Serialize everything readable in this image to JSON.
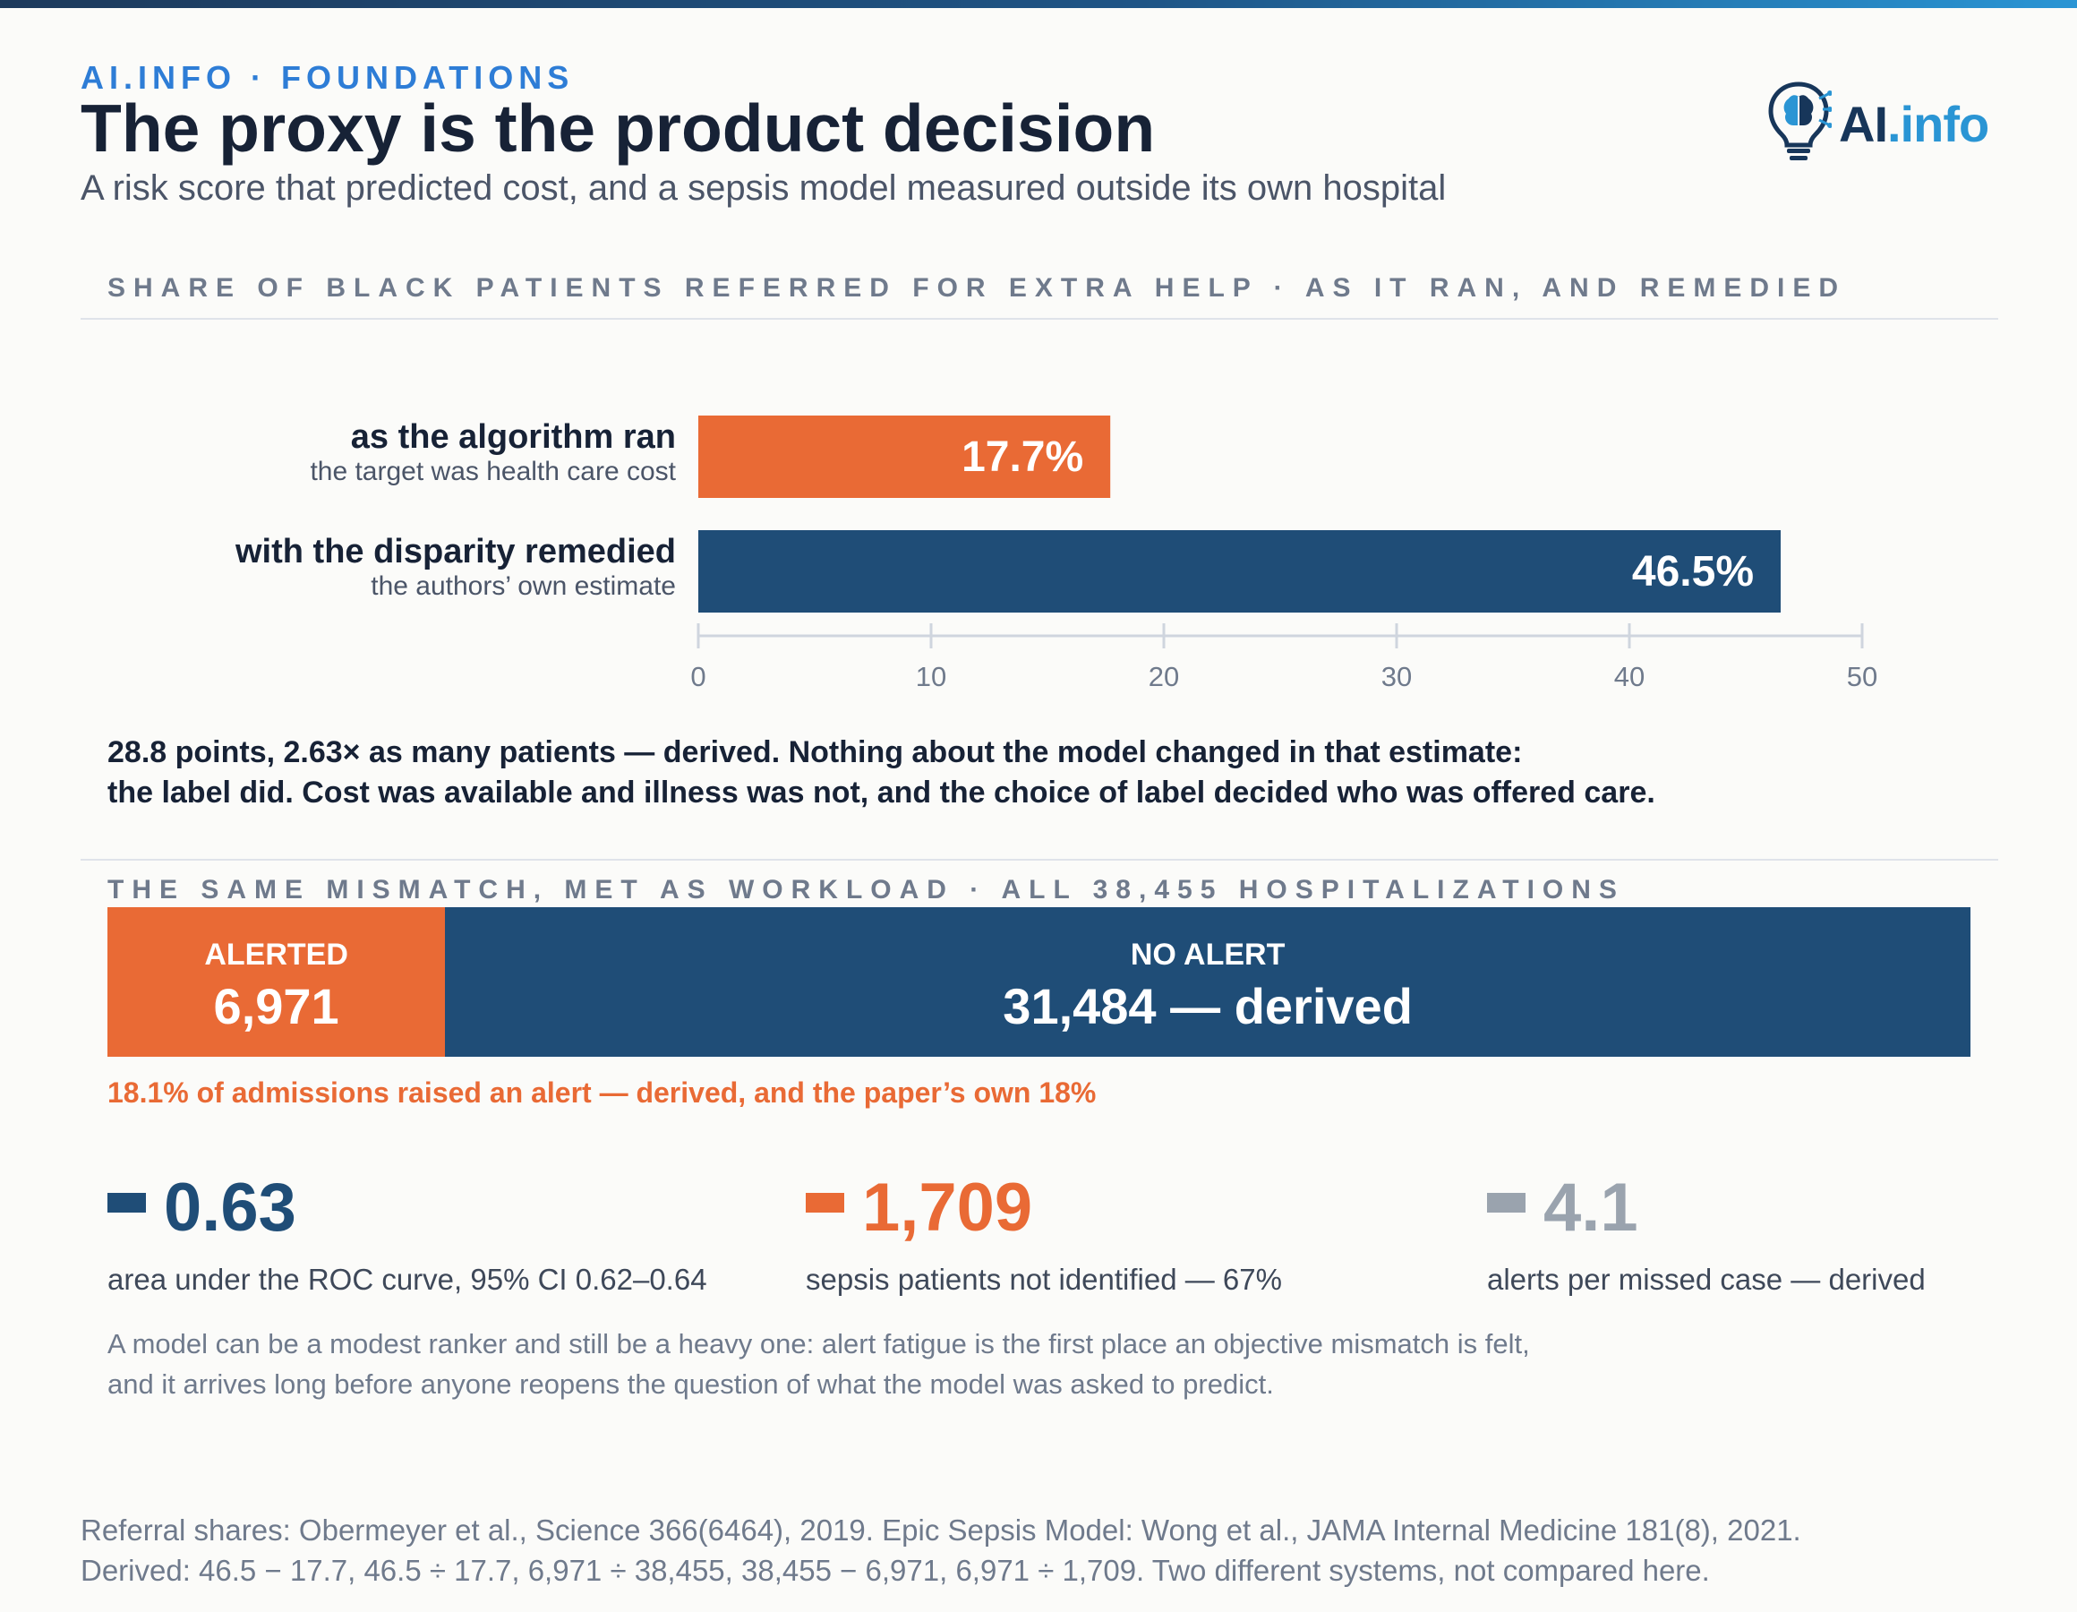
{
  "header": {
    "eyebrow": "AI.INFO · FOUNDATIONS",
    "title": "The proxy is the product decision",
    "subtitle": "A risk score that predicted cost, and a sepsis model measured outside its own hospital",
    "logo": {
      "ai": "AI",
      "info": ".info",
      "icon": "lightbulb-brain-icon"
    }
  },
  "section1": {
    "label": "SHARE OF BLACK PATIENTS REFERRED FOR EXTRA HELP · AS IT RAN, AND REMEDIED"
  },
  "chart_data": {
    "type": "bar",
    "orientation": "horizontal",
    "categories": [
      "as the algorithm ran",
      "with the disparity remedied"
    ],
    "category_notes": [
      "the target was health care cost",
      "the authors’ own estimate"
    ],
    "values": [
      17.7,
      46.5
    ],
    "value_labels": [
      "17.7%",
      "46.5%"
    ],
    "colors": [
      "#e96a35",
      "#1f4d77"
    ],
    "xlim": [
      0,
      50
    ],
    "ticks": [
      0,
      10,
      20,
      30,
      40,
      50
    ],
    "grid": false
  },
  "note1": {
    "line1": "28.8 points, 2.63× as many patients — derived. Nothing about the model changed in that estimate:",
    "line2": "the label did. Cost was available and illness was not, and the choice of label decided who was offered care."
  },
  "section2": {
    "label": "THE SAME MISMATCH, MET AS WORKLOAD · ALL 38,455 HOSPITALIZATIONS"
  },
  "workload": {
    "total": 38455,
    "alerted": {
      "label": "ALERTED",
      "value": 6971,
      "display": "6,971",
      "color": "#e96a35"
    },
    "no_alert": {
      "label": "NO ALERT",
      "value": 31484,
      "display": "31,484 — derived",
      "color": "#1f4d77"
    },
    "note": "18.1% of admissions raised an alert — derived, and the paper’s own 18%"
  },
  "stats": [
    {
      "value": "0.63",
      "desc": "area under the ROC curve, 95% CI 0.62–0.64",
      "color": "#1f4d77"
    },
    {
      "value": "1,709",
      "desc": "sepsis patients not identified — 67%",
      "color": "#e96a35"
    },
    {
      "value": "4.1",
      "desc": "alerts per missed case — derived",
      "color": "#9aa3ae"
    }
  ],
  "note2": {
    "line1": "A model can be a modest ranker and still be a heavy one: alert fatigue is the first place an objective mismatch is felt,",
    "line2": "and it arrives long before anyone reopens the question of what the model was asked to predict."
  },
  "footer": {
    "line1": "Referral shares: Obermeyer et al., Science 366(6464), 2019. Epic Sepsis Model: Wong et al., JAMA Internal Medicine 181(8), 2021.",
    "line2": "Derived: 46.5 − 17.7, 46.5 ÷ 17.7, 6,971 ÷ 38,455, 38,455 − 6,971, 6,971 ÷ 1,709. Two different systems, not compared here."
  }
}
